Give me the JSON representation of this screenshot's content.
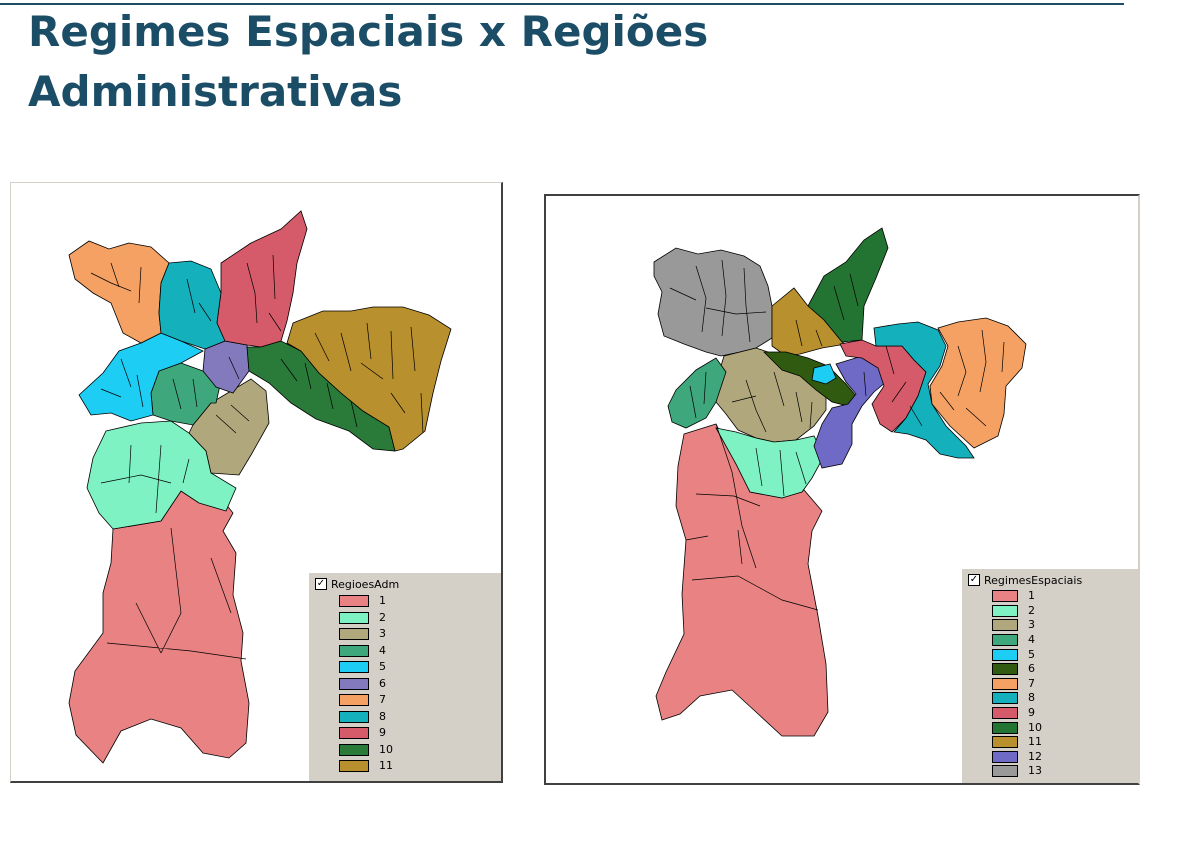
{
  "slide": {
    "title_line1": "Regimes Espaciais x Regiões",
    "title_line2": "Administrativas"
  },
  "legend_left": {
    "title": "RegioesAdm",
    "items": [
      {
        "label": "1",
        "color": "#e88283"
      },
      {
        "label": "2",
        "color": "#7ff2c4"
      },
      {
        "label": "3",
        "color": "#b0a87c"
      },
      {
        "label": "4",
        "color": "#3ea77c"
      },
      {
        "label": "5",
        "color": "#1ecdf3"
      },
      {
        "label": "6",
        "color": "#8379bd"
      },
      {
        "label": "7",
        "color": "#f5a163"
      },
      {
        "label": "8",
        "color": "#14b0bc"
      },
      {
        "label": "9",
        "color": "#d55b6a"
      },
      {
        "label": "10",
        "color": "#2a7a3a"
      },
      {
        "label": "11",
        "color": "#b8902e"
      }
    ]
  },
  "legend_right": {
    "title": "RegimesEspaciais",
    "items": [
      {
        "label": "1",
        "color": "#e88283"
      },
      {
        "label": "2",
        "color": "#7ff2c4"
      },
      {
        "label": "3",
        "color": "#b0a87c"
      },
      {
        "label": "4",
        "color": "#3ea77c"
      },
      {
        "label": "5",
        "color": "#1ecdf3"
      },
      {
        "label": "6",
        "color": "#2f5a10"
      },
      {
        "label": "7",
        "color": "#f5a163"
      },
      {
        "label": "8",
        "color": "#14b0bc"
      },
      {
        "label": "9",
        "color": "#d55b6a"
      },
      {
        "label": "10",
        "color": "#237433"
      },
      {
        "label": "11",
        "color": "#b8902e"
      },
      {
        "label": "12",
        "color": "#6f6ac6"
      },
      {
        "label": "13",
        "color": "#999999"
      }
    ]
  }
}
